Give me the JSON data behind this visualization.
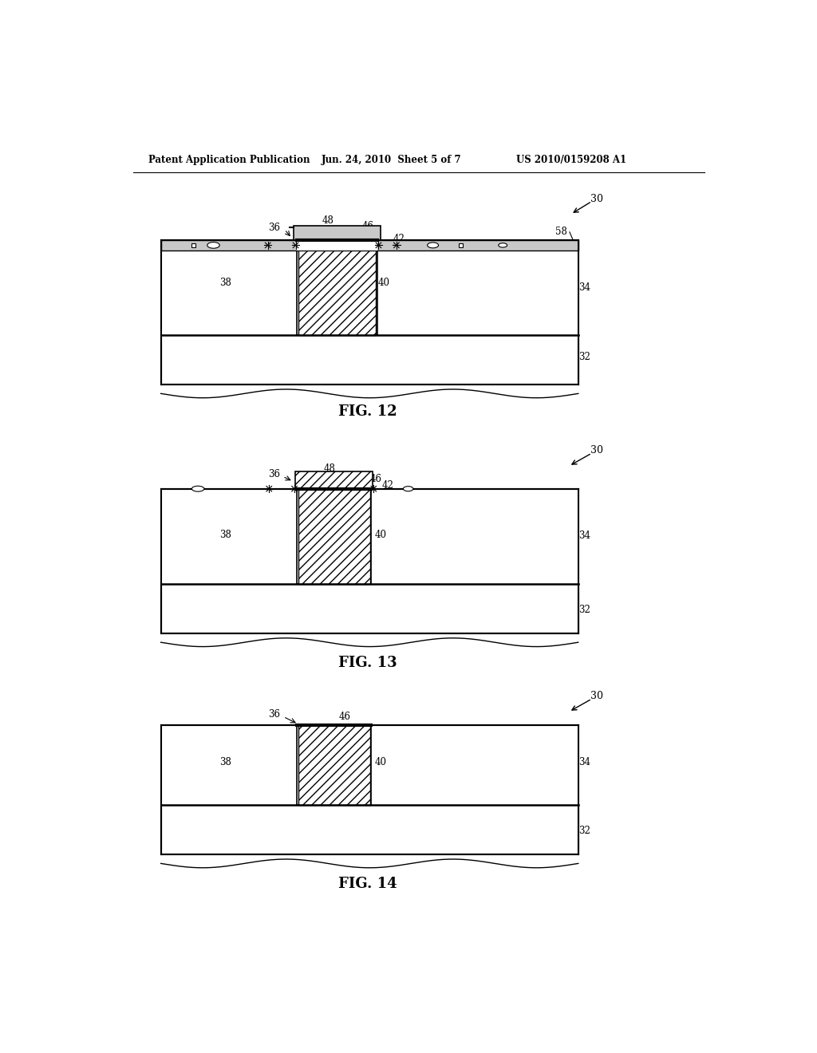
{
  "bg_color": "#ffffff",
  "header_left": "Patent Application Publication",
  "header_mid": "Jun. 24, 2010  Sheet 5 of 7",
  "header_right": "US 2010/0159208 A1",
  "fig12_caption": "FIG. 12",
  "fig13_caption": "FIG. 13",
  "fig14_caption": "FIG. 14",
  "line_color": "#000000",
  "hatch_color": "#000000",
  "gray_fill": "#c8c8c8",
  "white_fill": "#ffffff"
}
